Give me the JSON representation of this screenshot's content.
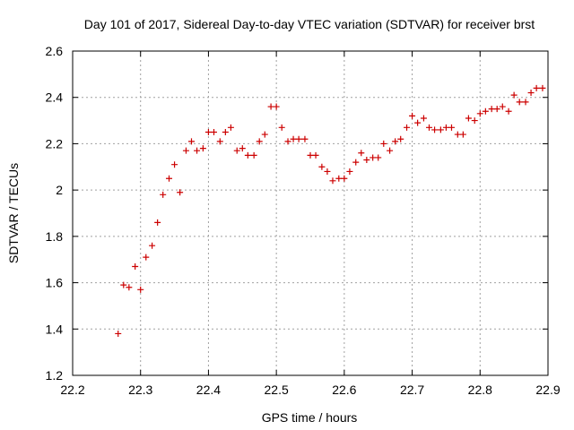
{
  "chart_data": {
    "type": "scatter",
    "title": "Day 101 of 2017, Sidereal Day-to-day VTEC variation (SDTVAR) for receiver brst",
    "xlabel": "GPS time / hours",
    "ylabel": "SDTVAR / TECUs",
    "xlim": [
      22.2,
      22.9
    ],
    "ylim": [
      1.2,
      2.6
    ],
    "xticks": [
      22.2,
      22.3,
      22.4,
      22.5,
      22.6,
      22.7,
      22.8,
      22.9
    ],
    "xtick_labels": [
      "22.2",
      "22.3",
      "22.4",
      "22.5",
      "22.6",
      "22.7",
      "22.8",
      "22.9"
    ],
    "yticks": [
      1.2,
      1.4,
      1.6,
      1.8,
      2.0,
      2.2,
      2.4,
      2.6
    ],
    "ytick_labels": [
      "1.2",
      "1.4",
      "1.6",
      "1.8",
      "2",
      "2.2",
      "2.4",
      "2.6"
    ],
    "grid": true,
    "marker": "+",
    "color": "#cc0000",
    "series": [
      {
        "name": "SDTVAR",
        "x": [
          22.267,
          22.275,
          22.283,
          22.292,
          22.3,
          22.308,
          22.317,
          22.325,
          22.333,
          22.342,
          22.35,
          22.358,
          22.367,
          22.375,
          22.383,
          22.392,
          22.4,
          22.408,
          22.417,
          22.425,
          22.433,
          22.442,
          22.45,
          22.458,
          22.467,
          22.475,
          22.483,
          22.492,
          22.5,
          22.508,
          22.517,
          22.525,
          22.533,
          22.542,
          22.55,
          22.558,
          22.567,
          22.575,
          22.583,
          22.592,
          22.6,
          22.608,
          22.617,
          22.625,
          22.633,
          22.642,
          22.65,
          22.658,
          22.667,
          22.675,
          22.683,
          22.692,
          22.7,
          22.708,
          22.717,
          22.725,
          22.733,
          22.742,
          22.75,
          22.758,
          22.767,
          22.775,
          22.783,
          22.792,
          22.8,
          22.808,
          22.817,
          22.825,
          22.833,
          22.842,
          22.85,
          22.858,
          22.867,
          22.875,
          22.883,
          22.892
        ],
        "y": [
          1.38,
          1.59,
          1.58,
          1.67,
          1.57,
          1.71,
          1.76,
          1.86,
          1.98,
          2.05,
          2.11,
          1.99,
          2.17,
          2.21,
          2.17,
          2.18,
          2.25,
          2.25,
          2.21,
          2.25,
          2.27,
          2.17,
          2.18,
          2.15,
          2.15,
          2.21,
          2.24,
          2.36,
          2.36,
          2.27,
          2.21,
          2.22,
          2.22,
          2.22,
          2.15,
          2.15,
          2.1,
          2.08,
          2.04,
          2.05,
          2.05,
          2.08,
          2.12,
          2.16,
          2.13,
          2.14,
          2.14,
          2.2,
          2.17,
          2.21,
          2.22,
          2.27,
          2.32,
          2.29,
          2.31,
          2.27,
          2.26,
          2.26,
          2.27,
          2.27,
          2.24,
          2.24,
          2.31,
          2.3,
          2.33,
          2.34,
          2.35,
          2.35,
          2.36,
          2.34,
          2.41,
          2.38,
          2.38,
          2.42,
          2.44,
          2.44
        ]
      }
    ]
  }
}
